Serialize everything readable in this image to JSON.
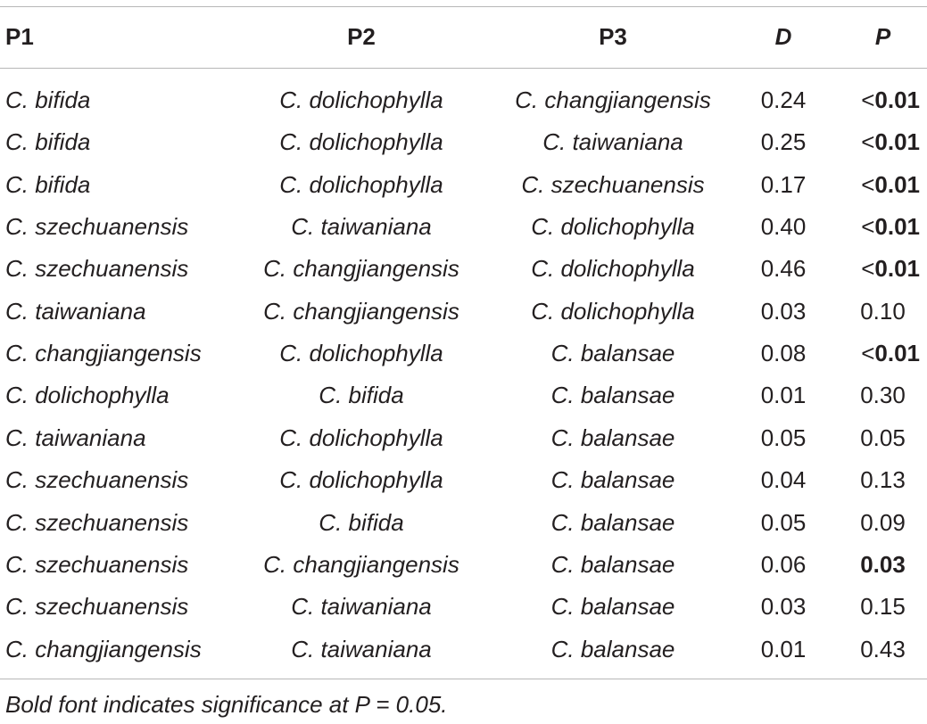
{
  "headers": {
    "p1": "P1",
    "p2": "P2",
    "p3": "P3",
    "d": "D",
    "p": "P"
  },
  "rows": [
    {
      "p1": "C. bifida",
      "p2": "C. dolichophylla",
      "p3": "C. changjiangensis",
      "d": "0.24",
      "p": "0.01",
      "p_prefix": "<",
      "significant": true
    },
    {
      "p1": "C. bifida",
      "p2": "C. dolichophylla",
      "p3": "C. taiwaniana",
      "d": "0.25",
      "p": "0.01",
      "p_prefix": "<",
      "significant": true
    },
    {
      "p1": "C. bifida",
      "p2": "C. dolichophylla",
      "p3": "C. szechuanensis",
      "d": "0.17",
      "p": "0.01",
      "p_prefix": "<",
      "significant": true
    },
    {
      "p1": "C. szechuanensis",
      "p2": "C. taiwaniana",
      "p3": "C. dolichophylla",
      "d": "0.40",
      "p": "0.01",
      "p_prefix": "<",
      "significant": true
    },
    {
      "p1": "C. szechuanensis",
      "p2": "C. changjiangensis",
      "p3": "C. dolichophylla",
      "d": "0.46",
      "p": "0.01",
      "p_prefix": "<",
      "significant": true
    },
    {
      "p1": "C. taiwaniana",
      "p2": "C. changjiangensis",
      "p3": "C. dolichophylla",
      "d": "0.03",
      "p": "0.10",
      "p_prefix": "",
      "significant": false
    },
    {
      "p1": "C. changjiangensis",
      "p2": "C. dolichophylla",
      "p3": "C. balansae",
      "d": "0.08",
      "p": "0.01",
      "p_prefix": "<",
      "significant": true
    },
    {
      "p1": "C. dolichophylla",
      "p2": "C. bifida",
      "p3": "C. balansae",
      "d": "0.01",
      "p": "0.30",
      "p_prefix": "",
      "significant": false
    },
    {
      "p1": "C. taiwaniana",
      "p2": "C. dolichophylla",
      "p3": "C. balansae",
      "d": "0.05",
      "p": "0.05",
      "p_prefix": "",
      "significant": false
    },
    {
      "p1": "C. szechuanensis",
      "p2": "C. dolichophylla",
      "p3": "C. balansae",
      "d": "0.04",
      "p": "0.13",
      "p_prefix": "",
      "significant": false
    },
    {
      "p1": "C. szechuanensis",
      "p2": "C. bifida",
      "p3": "C. balansae",
      "d": "0.05",
      "p": "0.09",
      "p_prefix": "",
      "significant": false
    },
    {
      "p1": "C. szechuanensis",
      "p2": "C. changjiangensis",
      "p3": "C. balansae",
      "d": "0.06",
      "p": "0.03",
      "p_prefix": "",
      "significant": true
    },
    {
      "p1": "C. szechuanensis",
      "p2": "C. taiwaniana",
      "p3": "C. balansae",
      "d": "0.03",
      "p": "0.15",
      "p_prefix": "",
      "significant": false
    },
    {
      "p1": "C. changjiangensis",
      "p2": "C. taiwaniana",
      "p3": "C. balansae",
      "d": "0.01",
      "p": "0.43",
      "p_prefix": "",
      "significant": false
    }
  ],
  "footnote": "Bold font indicates significance at P = 0.05."
}
